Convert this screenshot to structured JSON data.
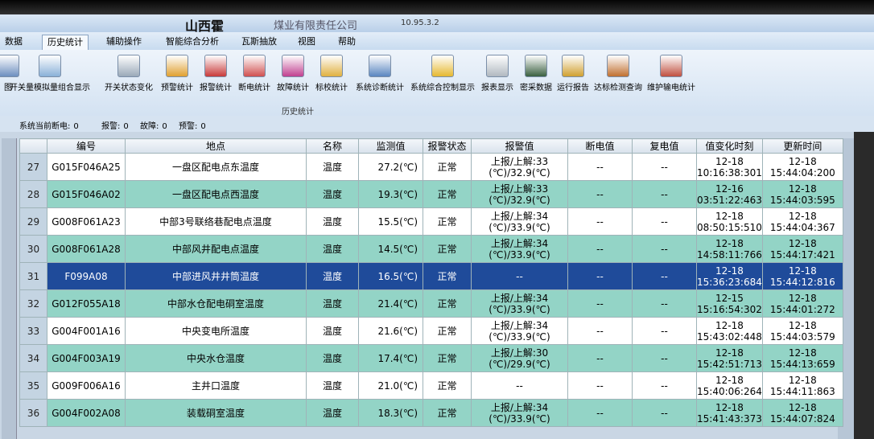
{
  "window": {
    "title": "山西霍",
    "title_rest": "煤业有限责任公司",
    "address": "10.95.3.2"
  },
  "menu": [
    "数据",
    "历史统计",
    "辅助操作",
    "智能综合分析",
    "瓦斯抽放",
    "视图",
    "帮助"
  ],
  "toolbar": {
    "buttons": [
      "图",
      "开关量模拟量组合显示",
      "开关状态变化",
      "预警统计",
      "报警统计",
      "断电统计",
      "故障统计",
      "标校统计",
      "系统诊断统计",
      "系统综合控制显示",
      "报表显示",
      "密采数据",
      "运行报告",
      "达标检测查询",
      "维护输电统计"
    ],
    "group": "历史统计"
  },
  "status": [
    {
      "label": "系统当前断电:",
      "value": 0
    },
    {
      "label": "报警:",
      "value": 0
    },
    {
      "label": "故障:",
      "value": 0
    },
    {
      "label": "预警:",
      "value": 0
    }
  ],
  "table": {
    "headers": [
      "编号",
      "地点",
      "名称",
      "监测值",
      "报警状态",
      "报警值",
      "断电值",
      "复电值",
      "值变化时刻",
      "更新时间"
    ],
    "selected_row": 4,
    "rows": [
      [
        27,
        "G015F046A25",
        "一盘区配电点东温度",
        "温度",
        "27.2(℃)",
        "正常",
        [
          "上报/上解:33",
          "(℃)/32.9(℃)"
        ],
        "--",
        "--",
        [
          "12-18",
          "10:16:38:301"
        ],
        [
          "12-18",
          "15:44:04:200"
        ]
      ],
      [
        28,
        "G015F046A02",
        "一盘区配电点西温度",
        "温度",
        "19.3(℃)",
        "正常",
        [
          "上报/上解:33",
          "(℃)/32.9(℃)"
        ],
        "--",
        "--",
        [
          "12-16",
          "03:51:22:463"
        ],
        [
          "12-18",
          "15:44:03:595"
        ]
      ],
      [
        29,
        "G008F061A23",
        "中部3号联络巷配电点温度",
        "温度",
        "15.5(℃)",
        "正常",
        [
          "上报/上解:34",
          "(℃)/33.9(℃)"
        ],
        "--",
        "--",
        [
          "12-18",
          "08:50:15:510"
        ],
        [
          "12-18",
          "15:44:04:367"
        ]
      ],
      [
        30,
        "G008F061A28",
        "中部风井配电点温度",
        "温度",
        "14.5(℃)",
        "正常",
        [
          "上报/上解:34",
          "(℃)/33.9(℃)"
        ],
        "--",
        "--",
        [
          "12-18",
          "14:58:11:766"
        ],
        [
          "12-18",
          "15:44:17:421"
        ]
      ],
      [
        31,
        "F099A08",
        "中部进风井井筒温度",
        "温度",
        "16.5(℃)",
        "正常",
        "--",
        "--",
        "--",
        [
          "12-18",
          "15:36:23:684"
        ],
        [
          "12-18",
          "15:44:12:816"
        ]
      ],
      [
        32,
        "G012F055A18",
        "中部水仓配电硐室温度",
        "温度",
        "21.4(℃)",
        "正常",
        [
          "上报/上解:34",
          "(℃)/33.9(℃)"
        ],
        "--",
        "--",
        [
          "12-15",
          "15:16:54:302"
        ],
        [
          "12-18",
          "15:44:01:272"
        ]
      ],
      [
        33,
        "G004F001A16",
        "中央变电所温度",
        "温度",
        "21.6(℃)",
        "正常",
        [
          "上报/上解:34",
          "(℃)/33.9(℃)"
        ],
        "--",
        "--",
        [
          "12-18",
          "15:43:02:448"
        ],
        [
          "12-18",
          "15:44:03:579"
        ]
      ],
      [
        34,
        "G004F003A19",
        "中央水仓温度",
        "温度",
        "17.4(℃)",
        "正常",
        [
          "上报/上解:30",
          "(℃)/29.9(℃)"
        ],
        "--",
        "--",
        [
          "12-18",
          "15:42:51:713"
        ],
        [
          "12-18",
          "15:44:13:659"
        ]
      ],
      [
        35,
        "G009F006A16",
        "主井口温度",
        "温度",
        "21.0(℃)",
        "正常",
        "--",
        "--",
        "--",
        [
          "12-18",
          "15:40:06:264"
        ],
        [
          "12-18",
          "15:44:11:863"
        ]
      ],
      [
        36,
        "G004F002A08",
        "装载硐室温度",
        "温度",
        "18.3(℃)",
        "正常",
        [
          "上报/上解:34",
          "(℃)/33.9(℃)"
        ],
        "--",
        "--",
        [
          "12-18",
          "15:41:43:373"
        ],
        [
          "12-18",
          "15:44:07:824"
        ]
      ]
    ]
  }
}
